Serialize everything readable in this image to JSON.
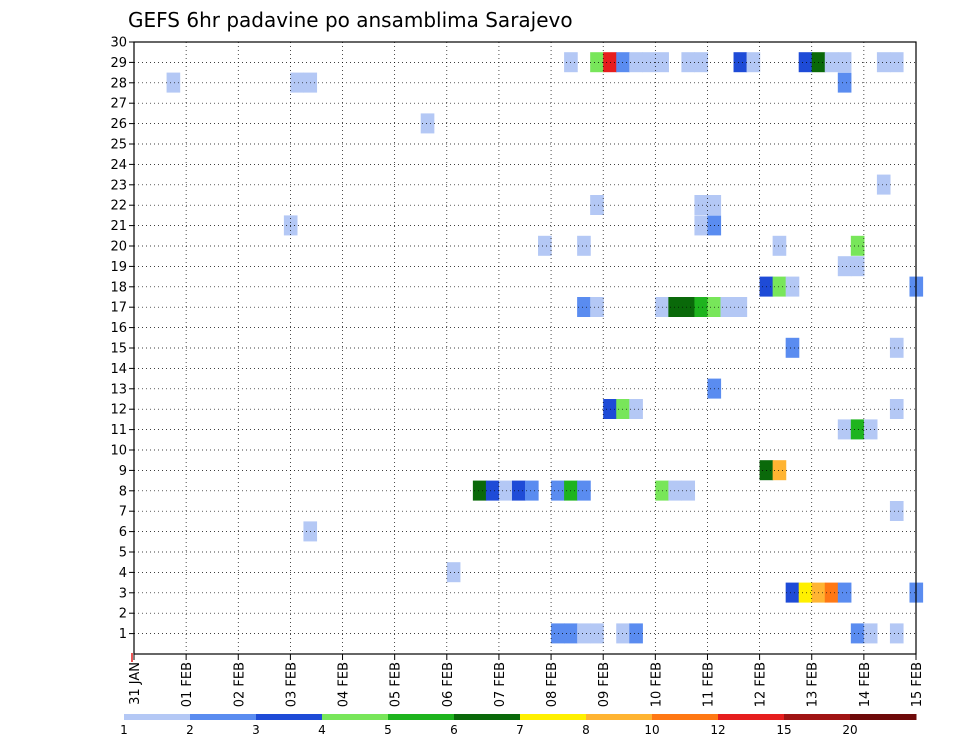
{
  "title": "GEFS 6hr padavine po ansamblima Sarajevo",
  "chart_data": {
    "type": "heatmap",
    "title": "GEFS 6hr padavine po ansamblima Sarajevo",
    "xlabel": "",
    "ylabel": "",
    "x_unit": "days since 31 JAN",
    "xlim": [
      0,
      15
    ],
    "ylim": [
      0,
      30
    ],
    "y_ticks": [
      1,
      2,
      3,
      4,
      5,
      6,
      7,
      8,
      9,
      10,
      11,
      12,
      13,
      14,
      15,
      16,
      17,
      18,
      19,
      20,
      21,
      22,
      23,
      24,
      25,
      26,
      27,
      28,
      29,
      30
    ],
    "x_tick_labels": [
      "31 JAN",
      "01 FEB",
      "02 FEB",
      "03 FEB",
      "04 FEB",
      "05 FEB",
      "06 FEB",
      "07 FEB",
      "08 FEB",
      "09 FEB",
      "10 FEB",
      "11 FEB",
      "12 FEB",
      "13 FEB",
      "14 FEB",
      "15 FEB"
    ],
    "grid": true,
    "legend": {
      "placement": "bottom",
      "colors": [
        "#b4c8f5",
        "#5a8cf0",
        "#1e4bd7",
        "#78e65a",
        "#1eb41e",
        "#0a690a",
        "#fff000",
        "#ffb432",
        "#ff7814",
        "#e61e1e",
        "#a01414",
        "#6e0a0a"
      ],
      "labels": [
        "1",
        "2",
        "3",
        "4",
        "5",
        "6",
        "7",
        "8",
        "10",
        "12",
        "15",
        "20"
      ]
    },
    "cells": [
      {
        "t": 0.625,
        "m": 28,
        "c": 1
      },
      {
        "t": 3.0,
        "m": 28,
        "c": 1
      },
      {
        "t": 3.25,
        "m": 28,
        "c": 1
      },
      {
        "t": 5.5,
        "m": 26,
        "c": 1
      },
      {
        "t": 8.25,
        "m": 29,
        "c": 1
      },
      {
        "t": 8.75,
        "m": 29,
        "c": 4
      },
      {
        "t": 9.0,
        "m": 29,
        "c": 10
      },
      {
        "t": 9.25,
        "m": 29,
        "c": 2
      },
      {
        "t": 9.5,
        "m": 29,
        "c": 1
      },
      {
        "t": 9.75,
        "m": 29,
        "c": 1
      },
      {
        "t": 10.0,
        "m": 29,
        "c": 1
      },
      {
        "t": 10.5,
        "m": 29,
        "c": 1
      },
      {
        "t": 10.75,
        "m": 29,
        "c": 1
      },
      {
        "t": 11.5,
        "m": 29,
        "c": 3
      },
      {
        "t": 11.75,
        "m": 29,
        "c": 1
      },
      {
        "t": 12.75,
        "m": 29,
        "c": 3
      },
      {
        "t": 13.0,
        "m": 29,
        "c": 6
      },
      {
        "t": 13.25,
        "m": 29,
        "c": 1
      },
      {
        "t": 13.5,
        "m": 29,
        "c": 1
      },
      {
        "t": 14.25,
        "m": 29,
        "c": 1
      },
      {
        "t": 14.5,
        "m": 29,
        "c": 1
      },
      {
        "t": 13.5,
        "m": 28,
        "c": 2
      },
      {
        "t": 14.25,
        "m": 23,
        "c": 1
      },
      {
        "t": 8.75,
        "m": 22,
        "c": 1
      },
      {
        "t": 10.75,
        "m": 22,
        "c": 1
      },
      {
        "t": 11.0,
        "m": 22,
        "c": 1
      },
      {
        "t": 2.875,
        "m": 21,
        "c": 1
      },
      {
        "t": 10.75,
        "m": 21,
        "c": 1
      },
      {
        "t": 11.0,
        "m": 21,
        "c": 2
      },
      {
        "t": 7.75,
        "m": 20,
        "c": 1
      },
      {
        "t": 8.5,
        "m": 20,
        "c": 1
      },
      {
        "t": 12.25,
        "m": 20,
        "c": 1
      },
      {
        "t": 13.75,
        "m": 20,
        "c": 4
      },
      {
        "t": 13.5,
        "m": 19,
        "c": 1
      },
      {
        "t": 13.75,
        "m": 19,
        "c": 1
      },
      {
        "t": 12.0,
        "m": 18,
        "c": 3
      },
      {
        "t": 12.25,
        "m": 18,
        "c": 4
      },
      {
        "t": 12.5,
        "m": 18,
        "c": 1
      },
      {
        "t": 14.875,
        "m": 18,
        "c": 2
      },
      {
        "t": 8.5,
        "m": 17,
        "c": 2
      },
      {
        "t": 8.75,
        "m": 17,
        "c": 1
      },
      {
        "t": 10.0,
        "m": 17,
        "c": 1
      },
      {
        "t": 10.25,
        "m": 17,
        "c": 6
      },
      {
        "t": 10.5,
        "m": 17,
        "c": 6
      },
      {
        "t": 10.75,
        "m": 17,
        "c": 5
      },
      {
        "t": 11.0,
        "m": 17,
        "c": 4
      },
      {
        "t": 11.25,
        "m": 17,
        "c": 1
      },
      {
        "t": 11.5,
        "m": 17,
        "c": 1
      },
      {
        "t": 12.5,
        "m": 15,
        "c": 2
      },
      {
        "t": 14.5,
        "m": 15,
        "c": 1
      },
      {
        "t": 11.0,
        "m": 13,
        "c": 2
      },
      {
        "t": 9.0,
        "m": 12,
        "c": 3
      },
      {
        "t": 9.25,
        "m": 12,
        "c": 4
      },
      {
        "t": 9.5,
        "m": 12,
        "c": 1
      },
      {
        "t": 14.5,
        "m": 12,
        "c": 1
      },
      {
        "t": 13.5,
        "m": 11,
        "c": 1
      },
      {
        "t": 13.75,
        "m": 11,
        "c": 5
      },
      {
        "t": 14.0,
        "m": 11,
        "c": 1
      },
      {
        "t": 12.0,
        "m": 9,
        "c": 6
      },
      {
        "t": 12.25,
        "m": 9,
        "c": 8
      },
      {
        "t": 6.5,
        "m": 8,
        "c": 6
      },
      {
        "t": 6.75,
        "m": 8,
        "c": 3
      },
      {
        "t": 7.0,
        "m": 8,
        "c": 1
      },
      {
        "t": 7.25,
        "m": 8,
        "c": 3
      },
      {
        "t": 7.5,
        "m": 8,
        "c": 2
      },
      {
        "t": 8.0,
        "m": 8,
        "c": 2
      },
      {
        "t": 8.25,
        "m": 8,
        "c": 5
      },
      {
        "t": 8.5,
        "m": 8,
        "c": 2
      },
      {
        "t": 10.0,
        "m": 8,
        "c": 4
      },
      {
        "t": 10.25,
        "m": 8,
        "c": 1
      },
      {
        "t": 10.5,
        "m": 8,
        "c": 1
      },
      {
        "t": 14.5,
        "m": 7,
        "c": 1
      },
      {
        "t": 3.25,
        "m": 6,
        "c": 1
      },
      {
        "t": 6.0,
        "m": 4,
        "c": 1
      },
      {
        "t": 12.5,
        "m": 3,
        "c": 3
      },
      {
        "t": 12.75,
        "m": 3,
        "c": 7
      },
      {
        "t": 13.0,
        "m": 3,
        "c": 8
      },
      {
        "t": 13.25,
        "m": 3,
        "c": 9
      },
      {
        "t": 13.5,
        "m": 3,
        "c": 2
      },
      {
        "t": 14.875,
        "m": 3,
        "c": 2
      },
      {
        "t": 8.0,
        "m": 1,
        "c": 2
      },
      {
        "t": 8.25,
        "m": 1,
        "c": 2
      },
      {
        "t": 8.5,
        "m": 1,
        "c": 1
      },
      {
        "t": 8.75,
        "m": 1,
        "c": 1
      },
      {
        "t": 9.25,
        "m": 1,
        "c": 1
      },
      {
        "t": 9.5,
        "m": 1,
        "c": 2
      },
      {
        "t": 13.75,
        "m": 1,
        "c": 2
      },
      {
        "t": 14.0,
        "m": 1,
        "c": 1
      },
      {
        "t": 14.5,
        "m": 1,
        "c": 1
      }
    ]
  }
}
